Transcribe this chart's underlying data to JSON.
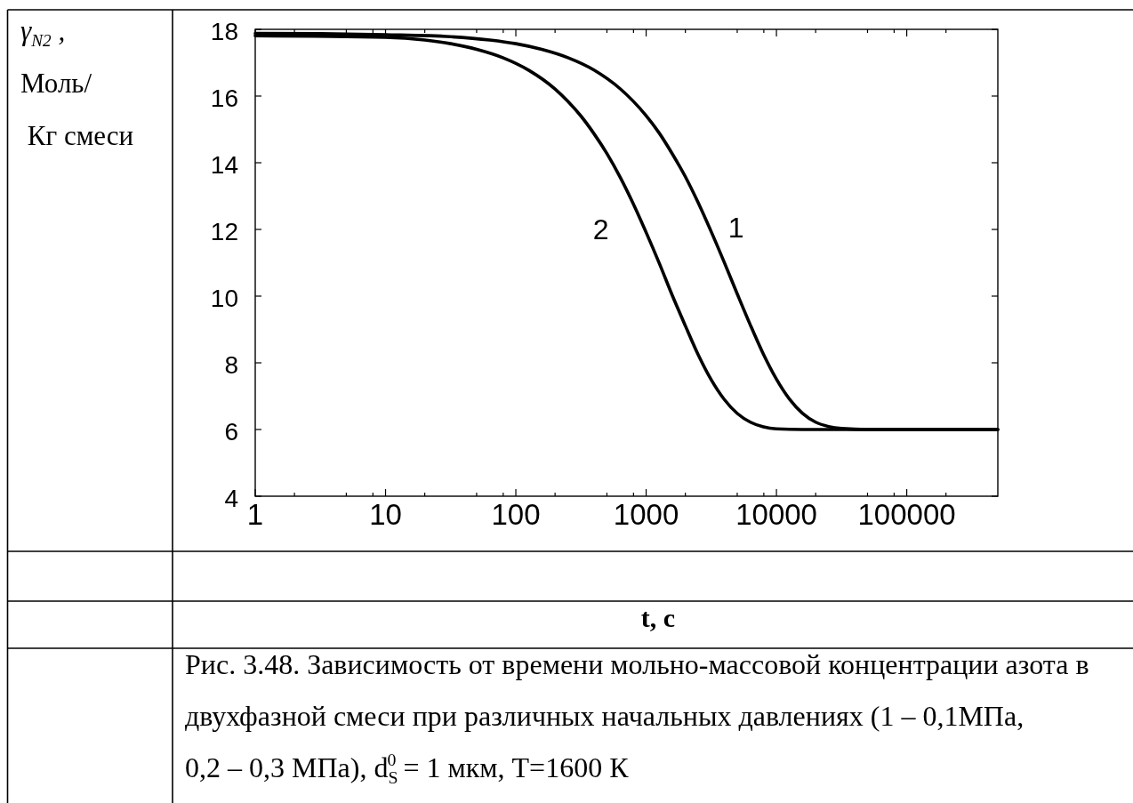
{
  "chart_data": {
    "type": "line",
    "xlabel": "t, c",
    "ylabel": "γ$_{N2}$ ,\nМоль/\n Кг смеси",
    "annotations": [
      "Рис. 3.48. Зависимость от времени мольно-массовой концентрации азота в\nдвухфазной смеси при различных начальных давлениях (1 – 0,1МПа,\n0,2 – 0,3 МПа), d$_{S}$$^{0}$ = 1 мкм, T=1600 К"
    ],
    "log": "x",
    "xlim": [
      1,
      500000
    ],
    "xticks": [
      1,
      {
        "value": 2,
        "label": null
      },
      {
        "value": 5,
        "label": null
      },
      {
        "value": 8,
        "label": null
      },
      10,
      {
        "value": 20,
        "label": null
      },
      {
        "value": 50,
        "label": null
      },
      {
        "value": 80,
        "label": null
      },
      100,
      {
        "value": 200,
        "label": null
      },
      {
        "value": 500,
        "label": null
      },
      {
        "value": 800,
        "label": null
      },
      1000,
      {
        "value": 2000,
        "label": null
      },
      {
        "value": 5000,
        "label": null
      },
      {
        "value": 8000,
        "label": null
      },
      10000,
      {
        "value": 20000,
        "label": null
      },
      {
        "value": 50000,
        "label": null
      },
      {
        "value": 80000,
        "label": null
      },
      100000,
      {
        "value": 200000,
        "label": null
      }
    ],
    "ylim": [
      4,
      18
    ],
    "yticks": [
      4,
      6,
      8,
      10,
      12,
      14,
      16,
      18
    ],
    "series": [
      {
        "name": "1",
        "color": "#000000",
        "x": [
          1,
          3.16,
          10,
          31.6,
          63.1,
          100,
          158,
          251,
          398,
          631,
          794,
          1000,
          1260,
          1580,
          2000,
          2510,
          3160,
          3980,
          5010,
          6310,
          7940,
          10000,
          12600,
          15800,
          20000,
          25100,
          31600,
          50100,
          100000,
          500000
        ],
        "values": [
          17.88,
          17.87,
          17.84,
          17.78,
          17.68,
          17.57,
          17.4,
          17.15,
          16.78,
          16.22,
          15.85,
          15.41,
          14.89,
          14.28,
          13.58,
          12.8,
          11.93,
          11.01,
          10.06,
          9.13,
          8.26,
          7.51,
          6.91,
          6.49,
          6.22,
          6.09,
          6.03,
          6.0,
          6.0,
          6.0
        ]
      },
      {
        "name": "2",
        "color": "#000000",
        "x": [
          1,
          10,
          20,
          31.6,
          50.1,
          79.4,
          126,
          200,
          251,
          316,
          398,
          501,
          631,
          794,
          1000,
          1260,
          1580,
          2000,
          2510,
          3160,
          3980,
          5010,
          6310,
          7940,
          10000,
          15800,
          31600,
          100000,
          500000
        ],
        "values": [
          17.81,
          17.76,
          17.68,
          17.57,
          17.4,
          17.15,
          16.77,
          16.21,
          15.84,
          15.4,
          14.87,
          14.27,
          13.57,
          12.78,
          11.91,
          10.99,
          10.04,
          9.11,
          8.24,
          7.49,
          6.9,
          6.48,
          6.22,
          6.08,
          6.02,
          6.0,
          6.0,
          6.0,
          6.0
        ]
      }
    ]
  }
}
